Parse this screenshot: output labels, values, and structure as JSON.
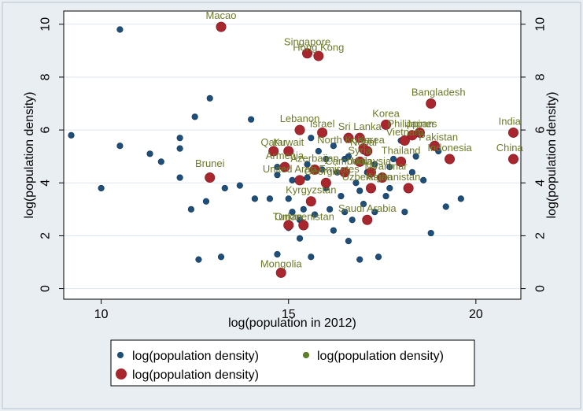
{
  "chart_data": {
    "type": "scatter",
    "xlabel": "log(population in 2012)",
    "ylabel": "log(population density)",
    "xlim": [
      9.0,
      21.2
    ],
    "ylim": [
      -0.4,
      10.5
    ],
    "xticks": [
      10,
      15,
      20
    ],
    "yticks": [
      0,
      2,
      4,
      6,
      8,
      10
    ],
    "grid": true,
    "legend_placement": "bottom",
    "colors": {
      "series_blue": "#1f4e79",
      "series_green": "#5f7f2a",
      "series_red": "#a8262e",
      "label": "#6e7a2a",
      "grid": "#dde6ee",
      "frame_bg": "#e9eef3"
    },
    "series": [
      {
        "name": "log(population density)",
        "marker": "small-dot",
        "color": "#1f4e79",
        "points": [
          [
            9.2,
            5.8
          ],
          [
            10.5,
            9.8
          ],
          [
            10.5,
            5.4
          ],
          [
            10.0,
            3.8
          ],
          [
            11.3,
            5.1
          ],
          [
            11.6,
            4.8
          ],
          [
            12.1,
            5.7
          ],
          [
            12.1,
            5.3
          ],
          [
            12.1,
            4.2
          ],
          [
            12.4,
            3.0
          ],
          [
            12.5,
            6.5
          ],
          [
            12.6,
            1.1
          ],
          [
            12.8,
            3.3
          ],
          [
            12.9,
            7.2
          ],
          [
            13.2,
            1.2
          ],
          [
            13.3,
            3.8
          ],
          [
            13.7,
            3.9
          ],
          [
            14.0,
            6.4
          ],
          [
            14.1,
            3.4
          ],
          [
            14.5,
            3.4
          ],
          [
            14.7,
            4.3
          ],
          [
            14.7,
            4.6
          ],
          [
            14.7,
            1.3
          ],
          [
            15.0,
            2.3
          ],
          [
            15.0,
            3.4
          ],
          [
            15.1,
            4.1
          ],
          [
            15.1,
            2.9
          ],
          [
            15.3,
            1.9
          ],
          [
            15.3,
            2.6
          ],
          [
            15.4,
            3.0
          ],
          [
            15.5,
            4.7
          ],
          [
            15.6,
            5.7
          ],
          [
            15.6,
            1.2
          ],
          [
            15.7,
            2.8
          ],
          [
            15.8,
            5.2
          ],
          [
            15.9,
            4.5
          ],
          [
            16.0,
            3.8
          ],
          [
            16.1,
            3.0
          ],
          [
            16.2,
            5.4
          ],
          [
            16.2,
            2.2
          ],
          [
            16.3,
            4.4
          ],
          [
            16.4,
            3.5
          ],
          [
            16.5,
            4.9
          ],
          [
            16.5,
            2.9
          ],
          [
            16.6,
            1.8
          ],
          [
            16.6,
            5.0
          ],
          [
            16.7,
            2.6
          ],
          [
            16.8,
            4.0
          ],
          [
            16.9,
            3.7
          ],
          [
            16.9,
            1.1
          ],
          [
            17.0,
            3.2
          ],
          [
            17.0,
            5.2
          ],
          [
            17.1,
            4.4
          ],
          [
            17.3,
            4.7
          ],
          [
            17.3,
            2.9
          ],
          [
            17.4,
            1.2
          ],
          [
            17.5,
            4.2
          ],
          [
            17.6,
            3.5
          ],
          [
            17.7,
            3.8
          ],
          [
            17.8,
            4.9
          ],
          [
            18.0,
            5.6
          ],
          [
            18.1,
            2.9
          ],
          [
            18.3,
            4.4
          ],
          [
            18.4,
            5.0
          ],
          [
            18.6,
            4.1
          ],
          [
            18.8,
            2.1
          ],
          [
            19.0,
            5.2
          ],
          [
            19.2,
            3.1
          ],
          [
            19.6,
            3.4
          ],
          [
            15.5,
            4.2
          ],
          [
            16.0,
            4.9
          ],
          [
            17.7,
            4.6
          ]
        ]
      },
      {
        "name": "log(population density)",
        "marker": "small-dot",
        "color": "#5f7f2a",
        "points": []
      },
      {
        "name": "log(population density)",
        "marker": "large-dot",
        "color": "#a8262e",
        "points": [
          {
            "x": 13.2,
            "y": 9.9,
            "label": "Macao"
          },
          {
            "x": 15.5,
            "y": 8.9,
            "label": "Singapore"
          },
          {
            "x": 15.8,
            "y": 8.8,
            "label": "Hong Kong"
          },
          {
            "x": 18.8,
            "y": 7.0,
            "label": "Bangladesh"
          },
          {
            "x": 21.0,
            "y": 5.9,
            "label": "India"
          },
          {
            "x": 21.0,
            "y": 4.9,
            "label": "China"
          },
          {
            "x": 15.3,
            "y": 6.0,
            "label": "Lebanon"
          },
          {
            "x": 15.9,
            "y": 5.9,
            "label": "Israel"
          },
          {
            "x": 17.6,
            "y": 6.2,
            "label": "Korea"
          },
          {
            "x": 16.9,
            "y": 5.7,
            "label": "Sri Lanka"
          },
          {
            "x": 18.3,
            "y": 5.8,
            "label": "Philippines"
          },
          {
            "x": 18.5,
            "y": 5.9,
            "label": "Japan"
          },
          {
            "x": 18.1,
            "y": 5.6,
            "label": "Vietnam"
          },
          {
            "x": 18.9,
            "y": 5.4,
            "label": "Pakistan"
          },
          {
            "x": 17.1,
            "y": 5.2,
            "label": "Korea"
          },
          {
            "x": 17.0,
            "y": 5.3,
            "label": "Nepal"
          },
          {
            "x": 16.6,
            "y": 5.7,
            "label": "North Korea"
          },
          {
            "x": 18.0,
            "y": 4.8,
            "label": "Thailand"
          },
          {
            "x": 19.3,
            "y": 4.9,
            "label": "Indonesia"
          },
          {
            "x": 14.6,
            "y": 5.2,
            "label": "Qatar"
          },
          {
            "x": 15.0,
            "y": 5.2,
            "label": "Kuwait"
          },
          {
            "x": 12.9,
            "y": 4.2,
            "label": "Brunei"
          },
          {
            "x": 14.9,
            "y": 4.6,
            "label": "Armenia"
          },
          {
            "x": 15.3,
            "y": 4.1,
            "label": "United Arab Emirates"
          },
          {
            "x": 15.7,
            "y": 4.5,
            "label": "Azerbaijan"
          },
          {
            "x": 16.0,
            "y": 4.0,
            "label": "Georgia"
          },
          {
            "x": 16.5,
            "y": 4.4,
            "label": "Cambodia"
          },
          {
            "x": 16.9,
            "y": 4.8,
            "label": "Syria"
          },
          {
            "x": 17.2,
            "y": 4.4,
            "label": "Malaysia"
          },
          {
            "x": 17.5,
            "y": 4.2,
            "label": "Myanmar"
          },
          {
            "x": 18.2,
            "y": 3.8,
            "label": "Afghanistan"
          },
          {
            "x": 17.2,
            "y": 3.8,
            "label": "Uzbekistan"
          },
          {
            "x": 15.6,
            "y": 3.3,
            "label": "Kyrgyzstan"
          },
          {
            "x": 15.0,
            "y": 2.4,
            "label": "Oman"
          },
          {
            "x": 15.4,
            "y": 2.4,
            "label": "Turkmenistan"
          },
          {
            "x": 17.1,
            "y": 2.6,
            "label": "Saudi Arabia"
          },
          {
            "x": 14.8,
            "y": 0.6,
            "label": "Mongolia"
          }
        ]
      }
    ],
    "annotations": [
      {
        "text": "Macao",
        "x": 13.2,
        "y": 10.2
      },
      {
        "text": "Singapore",
        "x": 15.5,
        "y": 9.2
      },
      {
        "text": "Hong Kong",
        "x": 15.8,
        "y": 9.0
      },
      {
        "text": "Bangladesh",
        "x": 19.0,
        "y": 7.3
      },
      {
        "text": "India",
        "x": 20.9,
        "y": 6.2
      },
      {
        "text": "China",
        "x": 20.9,
        "y": 5.2
      },
      {
        "text": "Lebanon",
        "x": 15.3,
        "y": 6.3
      },
      {
        "text": "Israel",
        "x": 15.9,
        "y": 6.1
      },
      {
        "text": "Korea",
        "x": 17.6,
        "y": 6.5
      },
      {
        "text": "Sri Lanka",
        "x": 16.9,
        "y": 6.0
      },
      {
        "text": "Philippines",
        "x": 18.3,
        "y": 6.1
      },
      {
        "text": "Japan",
        "x": 18.5,
        "y": 6.1
      },
      {
        "text": "Vietnam",
        "x": 18.1,
        "y": 5.8
      },
      {
        "text": "Pakistan",
        "x": 19.0,
        "y": 5.6
      },
      {
        "text": "Korea",
        "x": 17.2,
        "y": 5.5
      },
      {
        "text": "Nepal",
        "x": 17.0,
        "y": 5.4
      },
      {
        "text": "North Korea",
        "x": 16.5,
        "y": 5.5
      },
      {
        "text": "Thailand",
        "x": 18.0,
        "y": 5.1
      },
      {
        "text": "Indonesia",
        "x": 19.3,
        "y": 5.2
      },
      {
        "text": "Qatar",
        "x": 14.6,
        "y": 5.4
      },
      {
        "text": "Kuwait",
        "x": 15.0,
        "y": 5.4
      },
      {
        "text": "Brunei",
        "x": 12.9,
        "y": 4.6
      },
      {
        "text": "Armenia",
        "x": 14.9,
        "y": 4.9
      },
      {
        "text": "United Arab Emirates",
        "x": 15.6,
        "y": 4.4
      },
      {
        "text": "Azerbaijan",
        "x": 15.7,
        "y": 4.8
      },
      {
        "text": "Georgia",
        "x": 15.9,
        "y": 4.3
      },
      {
        "text": "Cambodia",
        "x": 16.6,
        "y": 4.7
      },
      {
        "text": "Syria",
        "x": 16.9,
        "y": 5.1
      },
      {
        "text": "Malaysia",
        "x": 17.2,
        "y": 4.7
      },
      {
        "text": "Myanmar",
        "x": 17.6,
        "y": 4.5
      },
      {
        "text": "Afghanistan",
        "x": 17.8,
        "y": 4.1
      },
      {
        "text": "Uzbekistan",
        "x": 17.1,
        "y": 4.1
      },
      {
        "text": "Kyrgyzstan",
        "x": 15.6,
        "y": 3.6
      },
      {
        "text": "Oman",
        "x": 15.0,
        "y": 2.6
      },
      {
        "text": "Turkmenistan",
        "x": 15.4,
        "y": 2.6
      },
      {
        "text": "Saudi Arabia",
        "x": 17.1,
        "y": 2.9
      },
      {
        "text": "Mongolia",
        "x": 14.8,
        "y": 0.8
      }
    ]
  },
  "legend": {
    "entries": [
      {
        "label": "log(population density)",
        "color": "#1f4e79",
        "marker": "small-dot"
      },
      {
        "label": "log(population density)",
        "color": "#5f7f2a",
        "marker": "small-dot"
      },
      {
        "label": "log(population density)",
        "color": "#a8262e",
        "marker": "large-dot"
      }
    ]
  }
}
